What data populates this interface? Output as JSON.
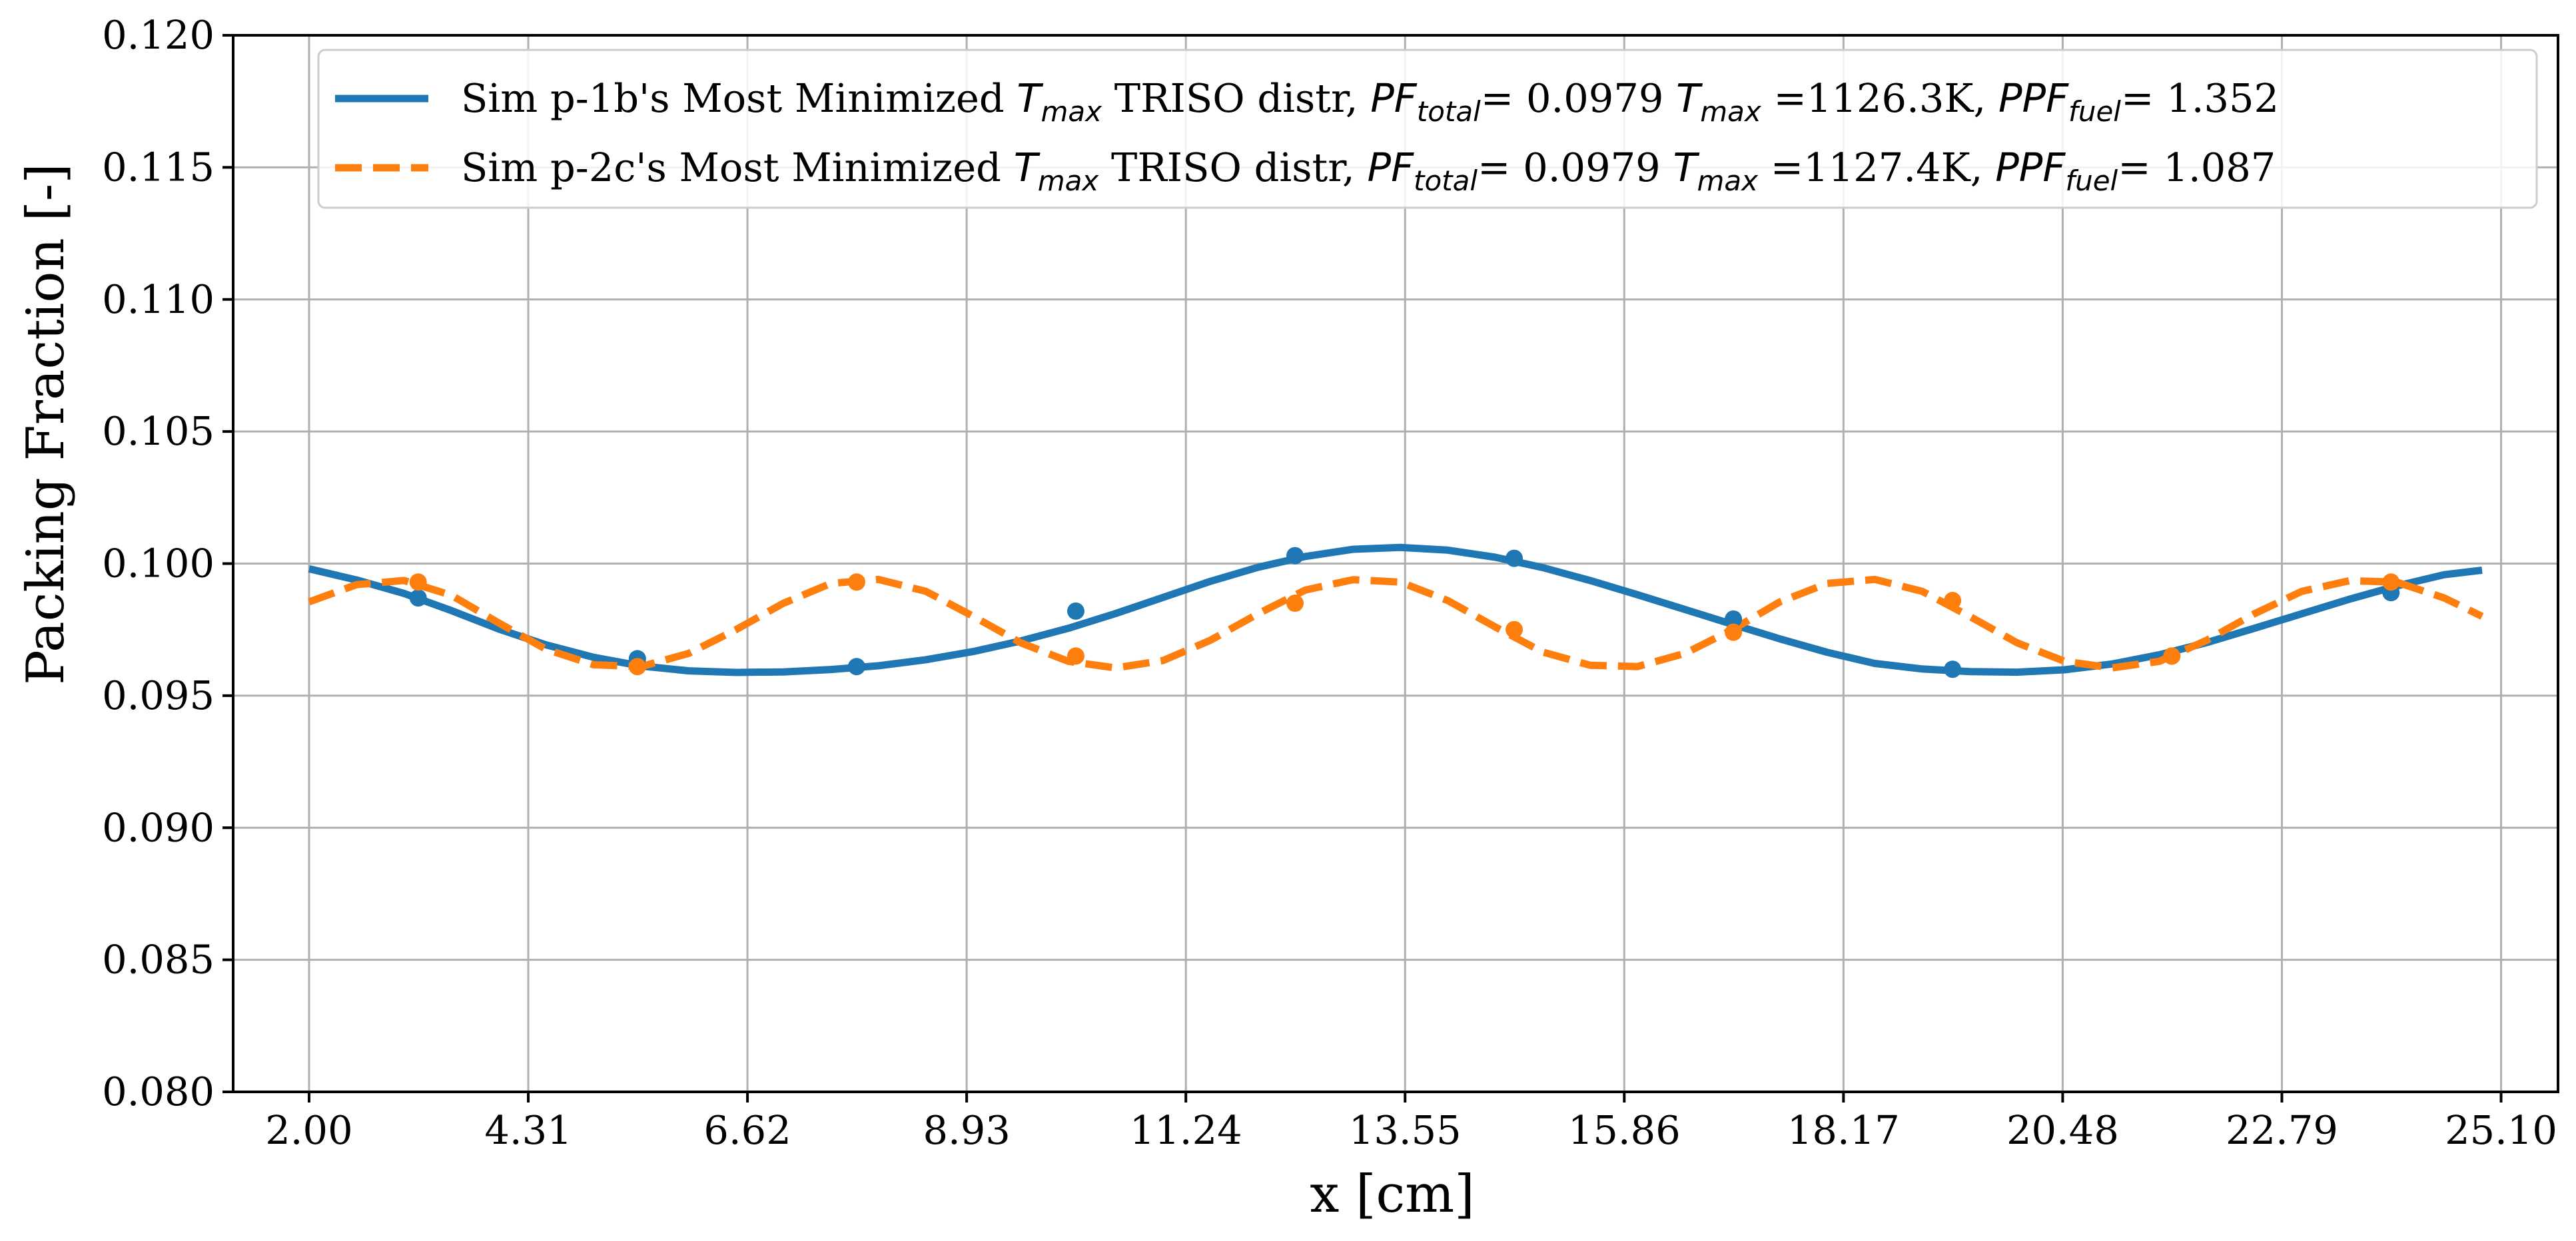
{
  "chart_data": {
    "type": "line",
    "title": "",
    "xlabel": "x [cm]",
    "ylabel": "Packing Fraction [-]",
    "xlim": [
      1.2,
      25.7
    ],
    "ylim": [
      0.08,
      0.12
    ],
    "grid": true,
    "legend_position": "top-right",
    "x_ticks": [
      2.0,
      4.31,
      6.62,
      8.93,
      11.24,
      13.55,
      15.86,
      18.17,
      20.48,
      22.79,
      25.1
    ],
    "x_tick_labels": [
      "2.00",
      "4.31",
      "6.62",
      "8.93",
      "11.24",
      "13.55",
      "15.86",
      "18.17",
      "20.48",
      "22.79",
      "25.10"
    ],
    "y_ticks": [
      0.08,
      0.085,
      0.09,
      0.095,
      0.1,
      0.105,
      0.11,
      0.115,
      0.12
    ],
    "y_tick_labels": [
      "0.080",
      "0.085",
      "0.090",
      "0.095",
      "0.100",
      "0.105",
      "0.110",
      "0.115",
      "0.120"
    ],
    "series": [
      {
        "legend_parts": [
          {
            "text": "Sim p-1b's Most Minimized ",
            "italic": false
          },
          {
            "text": "T",
            "italic": true
          },
          {
            "text": "max",
            "italic": true,
            "sub": true
          },
          {
            "text": " TRISO distr, ",
            "italic": false
          },
          {
            "text": "PF",
            "italic": true
          },
          {
            "text": "total",
            "italic": true,
            "sub": true
          },
          {
            "text": "= 0.0979 ",
            "italic": false
          },
          {
            "text": "T",
            "italic": true
          },
          {
            "text": "max",
            "italic": true,
            "sub": true
          },
          {
            "text": " =1126.3K, ",
            "italic": false
          },
          {
            "text": "PPF",
            "italic": true
          },
          {
            "text": "fuel",
            "italic": true,
            "sub": true
          },
          {
            "text": "= 1.352",
            "italic": false
          }
        ],
        "color": "#1f77b4",
        "line_style": "solid",
        "curve_x": [
          2.0,
          2.5,
          3.0,
          3.5,
          4.0,
          4.5,
          5.0,
          5.5,
          6.0,
          6.5,
          7.0,
          7.5,
          8.0,
          8.5,
          9.0,
          9.5,
          10.0,
          10.5,
          11.0,
          11.5,
          12.0,
          12.5,
          13.0,
          13.5,
          14.0,
          14.5,
          15.0,
          15.5,
          16.0,
          16.5,
          17.0,
          17.5,
          18.0,
          18.5,
          19.0,
          19.5,
          20.0,
          20.5,
          21.0,
          21.5,
          22.0,
          22.5,
          23.0,
          23.5,
          24.0,
          24.5,
          24.9
        ],
        "curve_y": [
          0.0998,
          0.09938,
          0.09887,
          0.09822,
          0.09752,
          0.09692,
          0.09645,
          0.09612,
          0.09594,
          0.09588,
          0.0959,
          0.09599,
          0.09613,
          0.09636,
          0.09667,
          0.09707,
          0.09755,
          0.09811,
          0.09872,
          0.09933,
          0.09986,
          0.10027,
          0.10054,
          0.10061,
          0.10051,
          0.10024,
          0.09985,
          0.09936,
          0.09882,
          0.09826,
          0.0977,
          0.09715,
          0.09664,
          0.09622,
          0.09601,
          0.09591,
          0.09589,
          0.09598,
          0.0962,
          0.09655,
          0.09701,
          0.09755,
          0.0981,
          0.09865,
          0.09915,
          0.09958,
          0.09975
        ],
        "markers_x": [
          3.15,
          5.46,
          7.77,
          10.08,
          12.39,
          14.7,
          17.01,
          19.32,
          21.63,
          23.94
        ],
        "markers_y": [
          0.0987,
          0.0964,
          0.0961,
          0.0982,
          0.1003,
          0.1002,
          0.0979,
          0.096,
          0.0965,
          0.0989
        ]
      },
      {
        "legend_parts": [
          {
            "text": "Sim p-2c's Most Minimized ",
            "italic": false
          },
          {
            "text": "T",
            "italic": true
          },
          {
            "text": "max",
            "italic": true,
            "sub": true
          },
          {
            "text": " TRISO distr, ",
            "italic": false
          },
          {
            "text": "PF",
            "italic": true
          },
          {
            "text": "total",
            "italic": true,
            "sub": true
          },
          {
            "text": "= 0.0979 ",
            "italic": false
          },
          {
            "text": "T",
            "italic": true
          },
          {
            "text": "max",
            "italic": true,
            "sub": true
          },
          {
            "text": " =1127.4K, ",
            "italic": false
          },
          {
            "text": "PPF",
            "italic": true
          },
          {
            "text": "fuel",
            "italic": true,
            "sub": true
          },
          {
            "text": "= 1.087",
            "italic": false
          }
        ],
        "color": "#ff7f0e",
        "line_style": "dashed",
        "curve_x": [
          2.0,
          2.5,
          3.0,
          3.5,
          4.0,
          4.5,
          5.0,
          5.5,
          6.0,
          6.5,
          7.0,
          7.5,
          8.0,
          8.5,
          9.0,
          9.5,
          10.0,
          10.5,
          11.0,
          11.5,
          12.0,
          12.5,
          13.0,
          13.5,
          14.0,
          14.5,
          15.0,
          15.5,
          16.0,
          16.5,
          17.0,
          17.5,
          18.0,
          18.5,
          19.0,
          19.5,
          20.0,
          20.5,
          21.0,
          21.5,
          22.0,
          22.5,
          23.0,
          23.5,
          24.0,
          24.5,
          24.9
        ],
        "curve_y": [
          0.09855,
          0.0992,
          0.09936,
          0.0988,
          0.09775,
          0.09675,
          0.09617,
          0.0961,
          0.0966,
          0.0975,
          0.0985,
          0.09925,
          0.0994,
          0.09895,
          0.098,
          0.097,
          0.0963,
          0.09605,
          0.09633,
          0.0971,
          0.0981,
          0.099,
          0.09939,
          0.0993,
          0.0986,
          0.0976,
          0.09665,
          0.09615,
          0.0961,
          0.0966,
          0.0975,
          0.09855,
          0.09925,
          0.0994,
          0.09895,
          0.098,
          0.097,
          0.0963,
          0.09605,
          0.0963,
          0.0971,
          0.0981,
          0.09895,
          0.09935,
          0.0993,
          0.0987,
          0.098
        ],
        "markers_x": [
          3.15,
          5.46,
          7.77,
          10.08,
          12.39,
          14.7,
          17.01,
          19.32,
          21.63,
          23.94
        ],
        "markers_y": [
          0.0993,
          0.0961,
          0.0993,
          0.0965,
          0.0985,
          0.0975,
          0.0974,
          0.0986,
          0.0965,
          0.0993
        ]
      }
    ]
  }
}
